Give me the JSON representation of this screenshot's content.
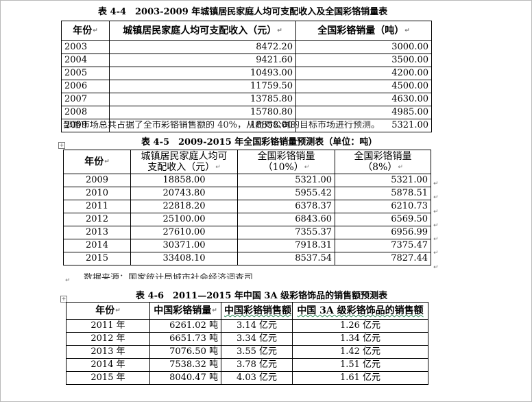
{
  "table1": {
    "caption": "表 4-4　2003-2009 年城镇居民家庭人均可支配收入及全国彩铬销量表",
    "headers": [
      "年份",
      "城镇居民家庭人均可支配收入（元）",
      "全国彩铬销量（吨）"
    ],
    "rows": [
      [
        "2003",
        "8472.20",
        "3000.00"
      ],
      [
        "2004",
        "9421.60",
        "3500.00"
      ],
      [
        "2005",
        "10493.00",
        "4200.00"
      ],
      [
        "2006",
        "11759.50",
        "4500.00"
      ],
      [
        "2007",
        "13785.80",
        "4630.00"
      ],
      [
        "2008",
        "15780.80",
        "4985.00"
      ],
      [
        "2009",
        "18858.00",
        "5321.00"
      ]
    ]
  },
  "overlap_text": "部路市场总共占据了全市彩铬销售额的 40%，从而对公司的目标市场进行预测。",
  "table2": {
    "caption": "表 4-5　2009-2015 年全国彩铬销量预测表（单位：吨）",
    "headers": [
      "年份",
      "城镇居民家庭人均可",
      "支配收入（元）",
      "全国彩铬销量",
      "（10%）",
      "全国彩铬销量",
      "（8%）"
    ],
    "rows": [
      [
        "2009",
        "18858.00",
        "5321.00",
        "5321.00"
      ],
      [
        "2010",
        "20743.80",
        "5955.42",
        "5878.51"
      ],
      [
        "2011",
        "22818.20",
        "6378.37",
        "6210.73"
      ],
      [
        "2012",
        "25100.00",
        "6843.60",
        "6569.50"
      ],
      [
        "2013",
        "27610.00",
        "7355.37",
        "6956.99"
      ],
      [
        "2014",
        "30371.00",
        "7918.31",
        "7375.47"
      ],
      [
        "2015",
        "33408.10",
        "8537.54",
        "7827.44"
      ]
    ]
  },
  "source_text": "数据来源：国家统计局城市社会经济调查司",
  "table3": {
    "caption": "表 4-6　2011—2015 年中国 3A 级彩铬饰品的销售额预测表",
    "headers": [
      "年份",
      "中国彩铬销量",
      "中国彩铬销售额",
      "中国 3A 级彩铬饰品的销售额"
    ],
    "rows": [
      [
        "2011 年",
        "6261.02 吨",
        "3.14 亿元",
        "1.26 亿元"
      ],
      [
        "2012 年",
        "6651.73 吨",
        "3.34 亿元",
        "1.34 亿元"
      ],
      [
        "2013 年",
        "7076.50 吨",
        "3.55 亿元",
        "1.42 亿元"
      ],
      [
        "2014 年",
        "7538.32 吨",
        "3.78 亿元",
        "1.51 亿元"
      ],
      [
        "2015 年",
        "8040.47 吨",
        "4.03 亿元",
        "1.61 亿元"
      ]
    ]
  },
  "marks": {
    "cell_end": "↵",
    "anchor": "+"
  }
}
